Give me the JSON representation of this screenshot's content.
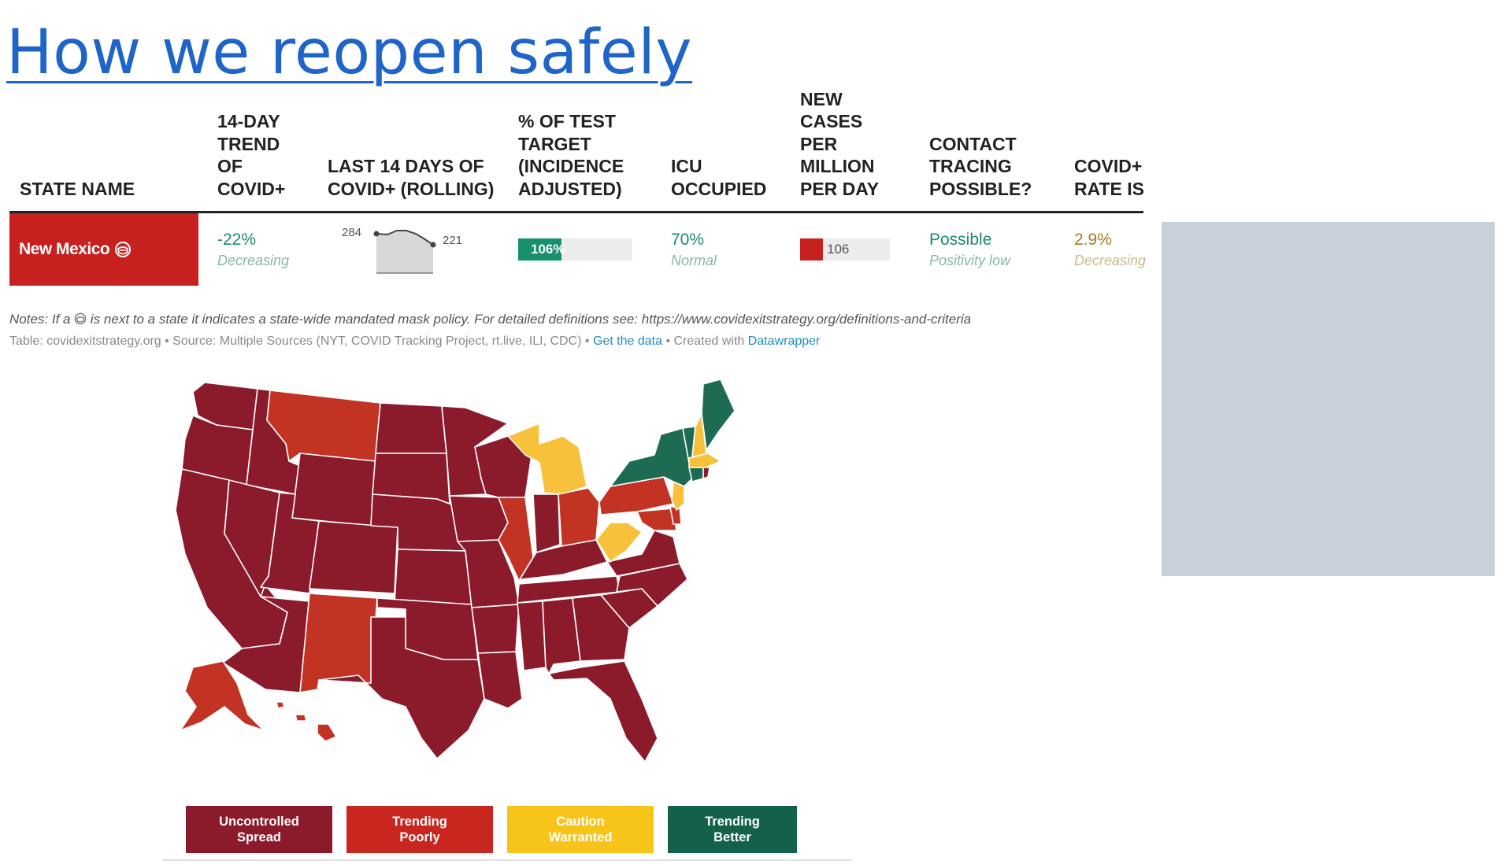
{
  "slide": {
    "title": "How we reopen safely"
  },
  "table": {
    "headers": {
      "state": "STATE NAME",
      "trend": "14-DAY TREND OF COVID+",
      "last14": "LAST 14 DAYS OF COVID+ (ROLLING)",
      "test": "% OF TEST TARGET (INCIDENCE ADJUSTED)",
      "icu": "ICU OCCUPIED",
      "cases": "NEW CASES PER MILLION PER DAY",
      "contact": "CONTACT TRACING POSSIBLE?",
      "rate": "COVID+ RATE IS"
    },
    "row": {
      "state": "New Mexico",
      "trend_value": "-22%",
      "trend_label": "Decreasing",
      "spark_start": "284",
      "spark_end": "221",
      "test_pct": "106%",
      "test_fraction": 0.38,
      "icu_value": "70%",
      "icu_label": "Normal",
      "cases_value": "106",
      "cases_fraction": 0.25,
      "contact_value": "Possible",
      "contact_label": "Positivity low",
      "rate_value": "2.9%",
      "rate_label": "Decreasing"
    }
  },
  "notes": {
    "prefix": "Notes: If a ",
    "suffix": " is next to a state it indicates a state-wide mandated mask policy. For detailed definitions see: https://www.covidexitstrategy.org/definitions-and-criteria"
  },
  "source": {
    "text": "Table: covidexitstrategy.org • Source: Multiple Sources (NYT, COVID Tracking Project, rt.live, ILI, CDC) • ",
    "get_data": "Get the data",
    "created": " • Created with ",
    "datawrapper": "Datawrapper"
  },
  "legend": [
    {
      "line1": "Uncontrolled",
      "line2": "Spread",
      "color": "#8b1a2b"
    },
    {
      "line1": "Trending",
      "line2": "Poorly",
      "color": "#c9261f"
    },
    {
      "line1": "Caution",
      "line2": "Warranted",
      "color": "#f7c41a"
    },
    {
      "line1": "Trending",
      "line2": "Better",
      "color": "#13614a"
    }
  ],
  "colors": {
    "uncontrolled": "#8b1a2b",
    "poorly": "#c23324",
    "caution": "#f7c13c",
    "better": "#1e6b54",
    "title": "#1f64c8"
  }
}
